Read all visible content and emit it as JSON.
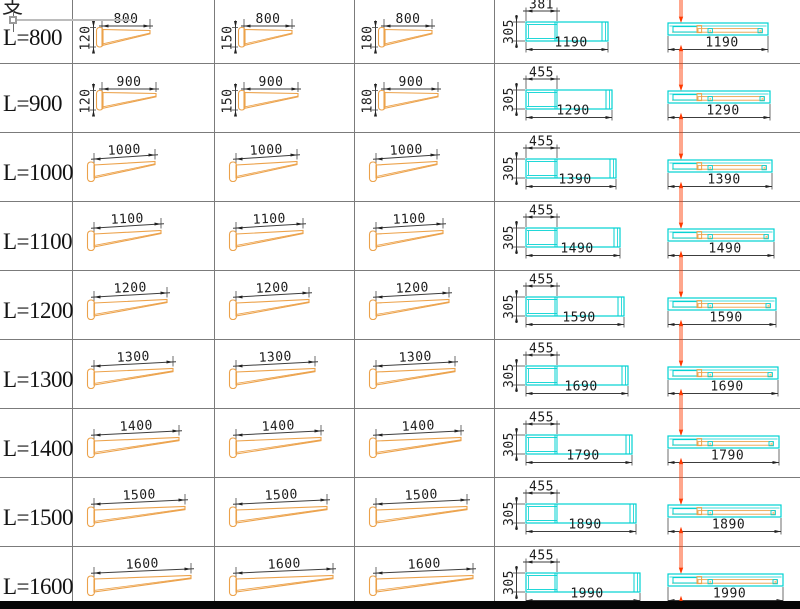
{
  "corner": {
    "character": "支"
  },
  "colors": {
    "beam_orange": "#ECA24B",
    "cyan": "#00D2D2",
    "red": "#FF3900",
    "dim_line": "#3c3c3c",
    "dim_text": "#1c1c1c",
    "grid": "#7b7b7b",
    "label_text": "#141414",
    "band": "#060606"
  },
  "rows": [
    {
      "label": "L=800",
      "beam_length": "800",
      "beam_heights": [
        "120",
        "150",
        "180"
      ],
      "plan": {
        "top": "381",
        "left": "305",
        "bottom": "1190"
      },
      "side": {
        "bottom": "1190"
      }
    },
    {
      "label": "L=900",
      "beam_length": "900",
      "beam_heights": [
        "120",
        "150",
        "180"
      ],
      "plan": {
        "top": "455",
        "left": "305",
        "bottom": "1290"
      },
      "side": {
        "bottom": "1290"
      }
    },
    {
      "label": "L=1000",
      "beam_length": "1000",
      "beam_heights": null,
      "plan": {
        "top": "455",
        "left": "305",
        "bottom": "1390"
      },
      "side": {
        "bottom": "1390"
      }
    },
    {
      "label": "L=1100",
      "beam_length": "1100",
      "beam_heights": null,
      "plan": {
        "top": "455",
        "left": "305",
        "bottom": "1490"
      },
      "side": {
        "bottom": "1490"
      }
    },
    {
      "label": "L=1200",
      "beam_length": "1200",
      "beam_heights": null,
      "plan": {
        "top": "455",
        "left": "305",
        "bottom": "1590"
      },
      "side": {
        "bottom": "1590"
      }
    },
    {
      "label": "L=1300",
      "beam_length": "1300",
      "beam_heights": null,
      "plan": {
        "top": "455",
        "left": "305",
        "bottom": "1690"
      },
      "side": {
        "bottom": "1690"
      }
    },
    {
      "label": "L=1400",
      "beam_length": "1400",
      "beam_heights": null,
      "plan": {
        "top": "455",
        "left": "305",
        "bottom": "1790"
      },
      "side": {
        "bottom": "1790"
      }
    },
    {
      "label": "L=1500",
      "beam_length": "1500",
      "beam_heights": null,
      "plan": {
        "top": "455",
        "left": "305",
        "bottom": "1890"
      },
      "side": {
        "bottom": "1890"
      }
    },
    {
      "label": "L=1600",
      "beam_length": "1600",
      "beam_heights": null,
      "plan": {
        "top": "455",
        "left": "305",
        "bottom": "1990"
      },
      "side": {
        "bottom": "1990"
      }
    }
  ]
}
